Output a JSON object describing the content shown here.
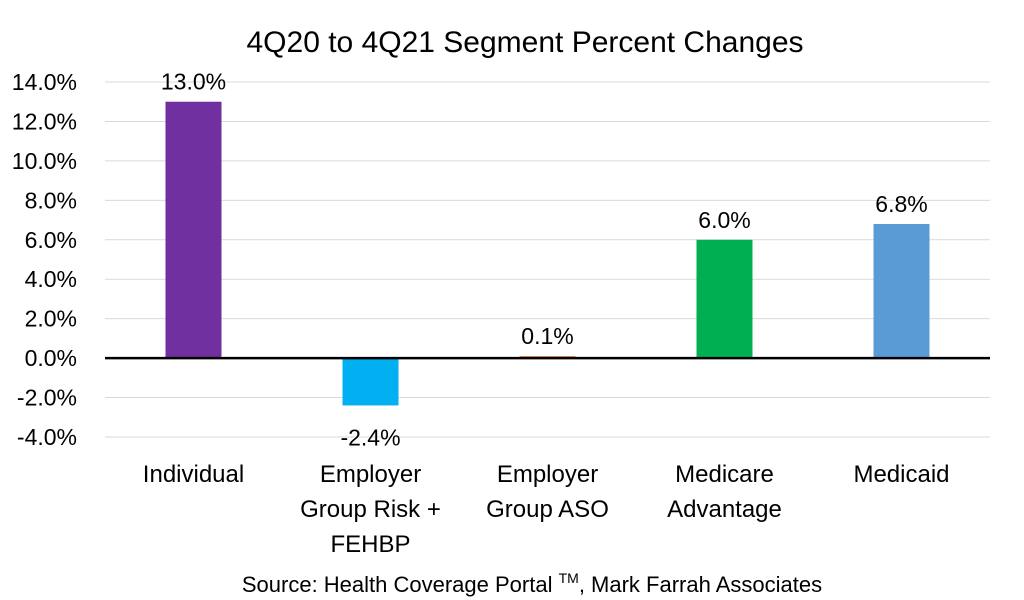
{
  "chart_data": {
    "type": "bar",
    "title": "4Q20 to 4Q21 Segment Percent Changes",
    "categories": [
      [
        "Individual"
      ],
      [
        "Employer",
        "Group Risk +",
        "FEHBP"
      ],
      [
        "Employer",
        "Group ASO"
      ],
      [
        "Medicare",
        "Advantage"
      ],
      [
        "Medicaid"
      ]
    ],
    "values": [
      13.0,
      -2.4,
      0.1,
      6.0,
      6.8
    ],
    "data_labels": [
      "13.0%",
      "-2.4%",
      "0.1%",
      "6.0%",
      "6.8%"
    ],
    "colors": [
      "#7030a0",
      "#00b0f0",
      "#ed7d31",
      "#00b050",
      "#5b9bd5"
    ],
    "ylim": [
      -4,
      14
    ],
    "yticks": [
      14,
      12,
      10,
      8,
      6,
      4,
      2,
      0,
      -2,
      -4
    ],
    "ytick_labels": [
      "14.0%",
      "12.0%",
      "10.0%",
      "8.0%",
      "6.0%",
      "4.0%",
      "2.0%",
      "0.0%",
      "-2.0%",
      "-4.0%"
    ],
    "grid": true,
    "xlabel": "",
    "ylabel": ""
  },
  "source": {
    "prefix": "Source: Health Coverage Portal ",
    "superscript": "TM",
    "suffix": ", Mark Farrah Associates"
  }
}
